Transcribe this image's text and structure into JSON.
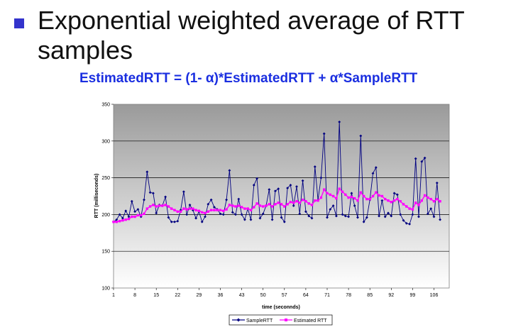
{
  "slide": {
    "title_line1": "Exponential weighted average of RTT",
    "title_line2": "samples",
    "formula": "EstimatedRTT = (1- α)*EstimatedRTT + α*SampleRTT"
  },
  "colors": {
    "bullet": "#3333cc",
    "formula": "#1a2ee0",
    "sample_series": "#000080",
    "estimated_series": "#ff00ff",
    "plot_bg_top": "#9a9a9a",
    "plot_bg_bottom": "#ffffff"
  },
  "chart_data": {
    "type": "line",
    "title": "",
    "xlabel": "time (seconnds)",
    "ylabel": "RTT (milliseconds)",
    "ylim": [
      100,
      350
    ],
    "yticks": [
      100,
      150,
      200,
      250,
      300,
      350
    ],
    "xlim": [
      1,
      111
    ],
    "xticks": [
      1,
      8,
      15,
      22,
      29,
      36,
      43,
      50,
      57,
      64,
      71,
      78,
      85,
      92,
      99,
      106
    ],
    "grid": true,
    "legend": "bottom-center",
    "x_start": 1,
    "series": [
      {
        "name": "SampleRTT",
        "marker": "diamond",
        "values": [
          190,
          193,
          200,
          195,
          205,
          197,
          218,
          204,
          207,
          197,
          220,
          258,
          230,
          229,
          202,
          213,
          212,
          224,
          196,
          190,
          190,
          191,
          206,
          231,
          200,
          213,
          206,
          195,
          204,
          190,
          197,
          214,
          220,
          210,
          207,
          201,
          200,
          220,
          260,
          203,
          200,
          221,
          200,
          193,
          208,
          193,
          240,
          249,
          195,
          201,
          212,
          234,
          193,
          232,
          235,
          196,
          190,
          236,
          240,
          212,
          238,
          201,
          246,
          204,
          198,
          195,
          265,
          220,
          250,
          310,
          196,
          207,
          212,
          198,
          326,
          200,
          198,
          197,
          229,
          212,
          196,
          307,
          190,
          196,
          220,
          256,
          264,
          198,
          219,
          197,
          202,
          198,
          229,
          227,
          200,
          192,
          188,
          187,
          200,
          276,
          197,
          272,
          277,
          201,
          208,
          197,
          243,
          193
        ]
      },
      {
        "name": "Estimated RTT",
        "marker": "square",
        "values": [
          190,
          190,
          191,
          192,
          193,
          194,
          197,
          197,
          199,
          199,
          201,
          208,
          211,
          213,
          211,
          212,
          212,
          213,
          211,
          208,
          206,
          204,
          204,
          208,
          207,
          208,
          208,
          206,
          205,
          203,
          202,
          204,
          206,
          206,
          206,
          206,
          205,
          207,
          213,
          212,
          211,
          212,
          210,
          208,
          208,
          206,
          210,
          215,
          212,
          211,
          212,
          214,
          211,
          214,
          216,
          214,
          211,
          214,
          217,
          216,
          218,
          216,
          220,
          218,
          215,
          213,
          219,
          219,
          223,
          234,
          229,
          227,
          225,
          222,
          235,
          231,
          227,
          223,
          224,
          222,
          219,
          230,
          225,
          221,
          221,
          225,
          230,
          226,
          225,
          221,
          219,
          217,
          219,
          221,
          218,
          214,
          211,
          208,
          207,
          216,
          213,
          219,
          226,
          223,
          221,
          218,
          221,
          218
        ]
      }
    ]
  }
}
